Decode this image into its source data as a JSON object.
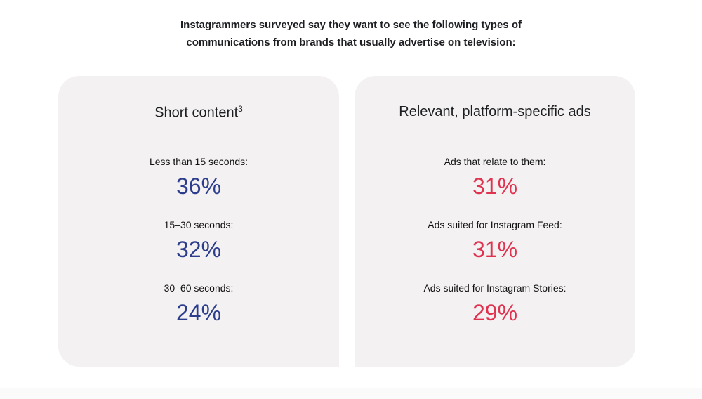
{
  "header": {
    "lines": [
      "Instagrammers surveyed say they want to see the following types of",
      "communications from brands that usually advertise on television:"
    ]
  },
  "cards": [
    {
      "title": "Short content",
      "superscript": "3",
      "color": "#2b3d8c",
      "items": [
        {
          "label": "Less than 15 seconds:",
          "value": "36%"
        },
        {
          "label": "15–30 seconds:",
          "value": "32%"
        },
        {
          "label": "30–60 seconds:",
          "value": "24%"
        }
      ]
    },
    {
      "title": "Relevant, platform-specific ads",
      "color": "#e0334f",
      "items": [
        {
          "label": "Ads that relate to them:",
          "value": "31%"
        },
        {
          "label": "Ads suited for Instagram Feed:",
          "value": "31%"
        },
        {
          "label": "Ads suited for Instagram Stories:",
          "value": "29%"
        }
      ]
    }
  ]
}
